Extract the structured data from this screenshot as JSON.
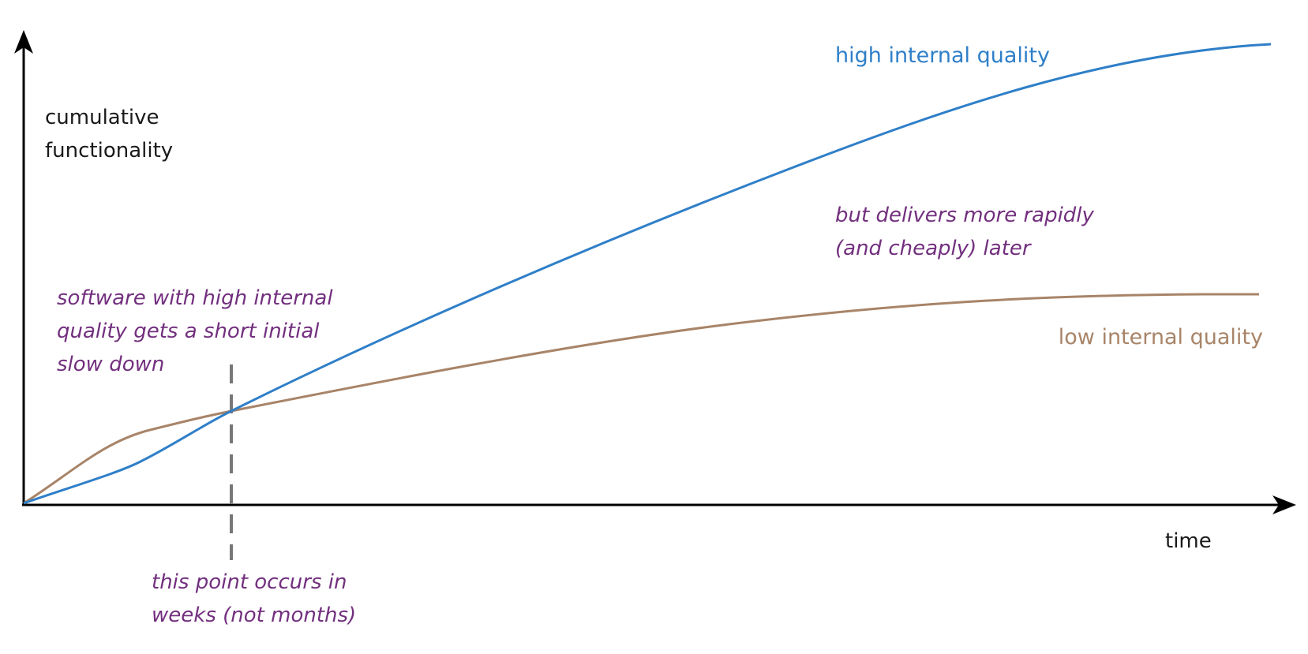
{
  "axes": {
    "y_label_lines": [
      "cumulative",
      "functionality"
    ],
    "x_label": "time"
  },
  "series": [
    {
      "name": "high internal quality",
      "color": "#2f7fc8"
    },
    {
      "name": "low internal quality",
      "color": "#a88468"
    }
  ],
  "annotations": {
    "slowdown_lines": [
      "software with high internal",
      "quality gets a short initial",
      "slow down"
    ],
    "later_lines": [
      "but delivers more rapidly",
      "(and cheaply) later"
    ],
    "crossover_lines": [
      "this point occurs in",
      "weeks (not months)"
    ]
  },
  "colors": {
    "axis": "#000000",
    "note": "#722f7e",
    "crossover_marker": "#777777"
  }
}
